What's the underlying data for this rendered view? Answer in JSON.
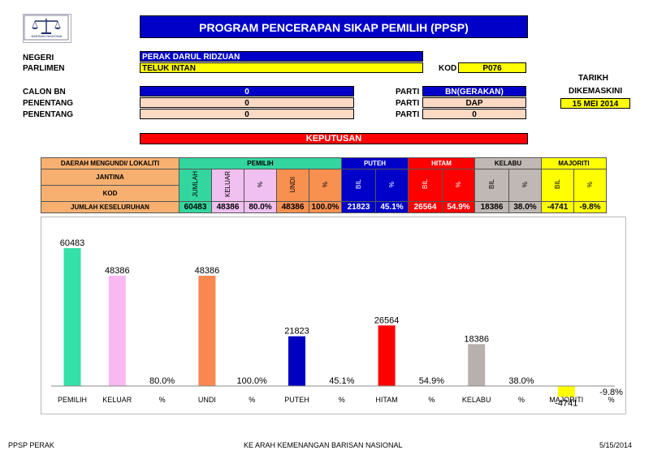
{
  "header": {
    "logo_text": "BARISAN NASIONAL",
    "title": "PROGRAM PENCERAPAN SIKAP PEMILIH (PPSP)"
  },
  "info": {
    "negeri_label": "NEGERI",
    "negeri_value": "PERAK DARUL RIDZUAN",
    "parlimen_label": "PARLIMEN",
    "parlimen_value": "TELUK INTAN",
    "kod_label": "KOD",
    "kod_value": "P076",
    "tarikh_label": "TARIKH",
    "dikemaskini_label": "DIKEMASKINI",
    "tarikh_value": "15 MEI 2014",
    "calon_bn_label": "CALON BN",
    "calon_bn_value": "0",
    "penentang1_label": "PENENTANG",
    "penentang1_value": "0",
    "penentang2_label": "PENENTANG",
    "penentang2_value": "0",
    "parti1_label": "PARTI",
    "parti1_value": "BN(GERAKAN)",
    "parti2_label": "PARTI",
    "parti2_value": "DAP",
    "parti3_label": "PARTI",
    "parti3_value": "0",
    "keputusan_label": "KEPUTUSAN"
  },
  "table": {
    "daerah_label": "DAERAH MENGUNDI/ LOKALITI",
    "jantina_label": "JANTINA",
    "kod_label": "KOD",
    "jumlah_label": "JUMLAH KESELURUHAN",
    "groups": {
      "pemilih": "PEMILIH",
      "puteh": "PUTEH",
      "hitam": "HITAM",
      "kelabu": "KELABU",
      "majoriti": "MAJORITI"
    },
    "sub": {
      "jumlah": "JUMLAH",
      "keluar": "KELUAR",
      "pct1": "%",
      "undi": "UNDI",
      "pct2": "%",
      "puteh_bil": "BIL",
      "puteh_pct": "%",
      "hitam_bil": "BIL",
      "hitam_pct": "%",
      "kelabu_bil": "BIL",
      "kelabu_pct": "%",
      "majoriti_bil": "BIL",
      "majoriti_pct": "%"
    },
    "values": {
      "jumlah": "60483",
      "keluar": "48386",
      "pct1": "80.0%",
      "undi": "48386",
      "pct2": "100.0%",
      "puteh_bil": "21823",
      "puteh_pct": "45.1%",
      "hitam_bil": "26564",
      "hitam_pct": "54.9%",
      "kelabu_bil": "18386",
      "kelabu_pct": "38.0%",
      "majoriti_bil": "-4741",
      "majoriti_pct": "-9.8%"
    },
    "colors": {
      "pemilih": "#33d69f",
      "puteh": "#0000c8",
      "hitam": "#ff0000",
      "kelabu": "#c0b8b4",
      "majoriti": "#ffff00",
      "daerah": "#f8b070",
      "keluar_bg": "#f0c0f0",
      "undi_bg": "#f89050"
    }
  },
  "chart_data": {
    "type": "bar",
    "categories": [
      "PEMILIH",
      "KELUAR",
      "%",
      "UNDI",
      "%",
      "PUTEH",
      "%",
      "HITAM",
      "%",
      "KELABU",
      "%",
      "MAJORITI",
      "%"
    ],
    "values": [
      60483,
      48386,
      0.8,
      48386,
      1.0,
      21823,
      0.451,
      26564,
      0.549,
      18386,
      0.38,
      -4741,
      -0.098
    ],
    "data_labels": [
      "60483",
      "48386",
      "80.0%",
      "48386",
      "100.0%",
      "21823",
      "45.1%",
      "26564",
      "54.9%",
      "18386",
      "38.0%",
      "-4741",
      "-9.8%"
    ],
    "colors": [
      "#33e0a8",
      "#f8b8f0",
      "#ffffff",
      "#f88850",
      "#ffffff",
      "#0000c0",
      "#ffffff",
      "#ff0000",
      "#ffffff",
      "#b8b0ac",
      "#ffffff",
      "#ffff00",
      "#ffffff"
    ],
    "ylim": [
      -5000,
      62000
    ],
    "grid": false,
    "legend": "none"
  },
  "footer": {
    "left": "PPSP PERAK",
    "center": "KE ARAH KEMENANGAN BARISAN NASIONAL",
    "right": "5/15/2014"
  }
}
